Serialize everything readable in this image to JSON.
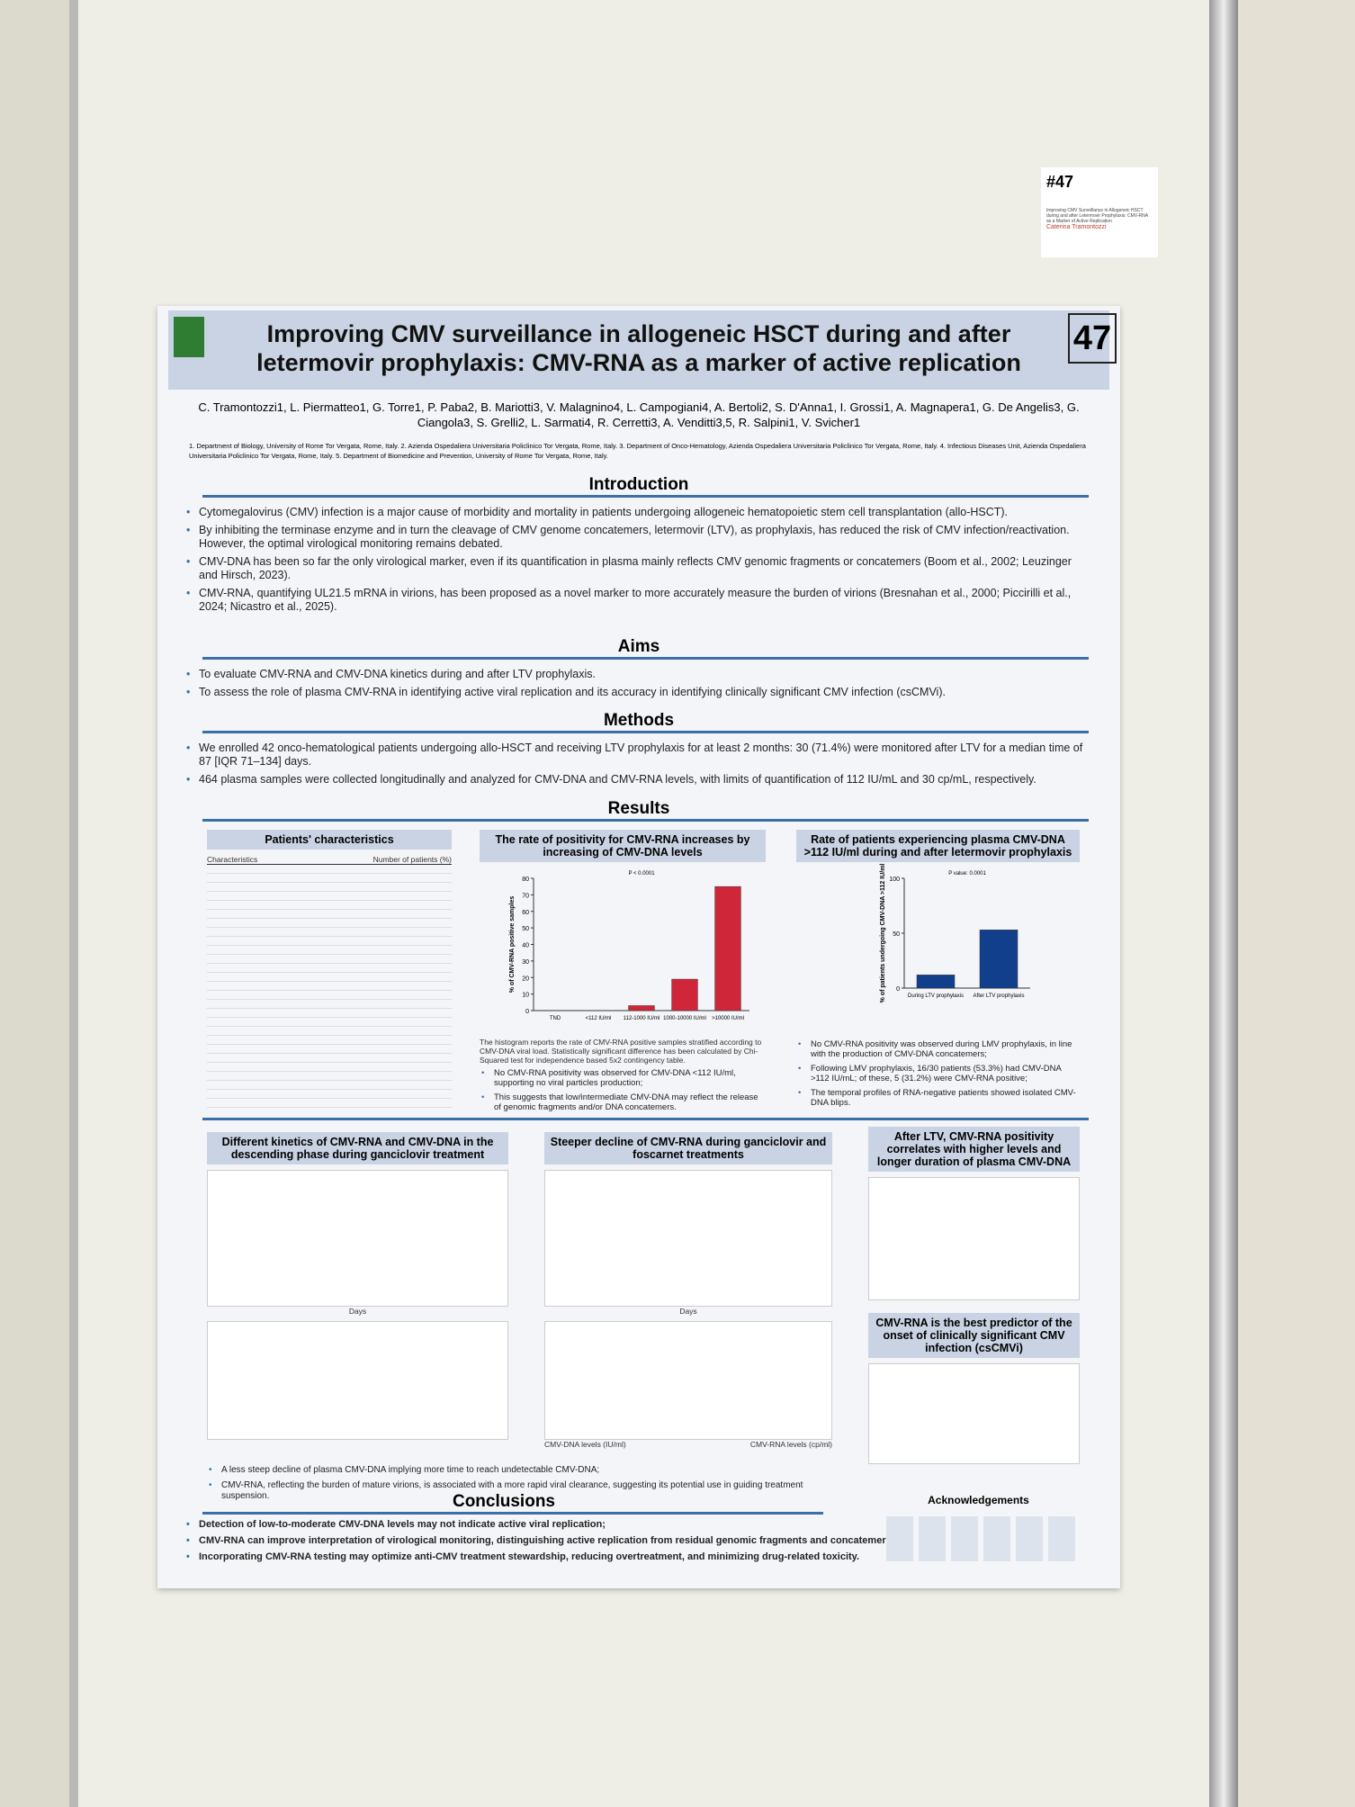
{
  "card": {
    "number": "#47",
    "title": "Improving CMV Surveillance in Allogeneic HSCT during and after Letermovir Prophylaxis: CMV-RNA as a Marker of Active Replication",
    "author": "Caterina Tramontozzi"
  },
  "header": {
    "title_line1": "Improving CMV surveillance in allogeneic HSCT during and after",
    "title_line2": "letermovir prophylaxis: CMV-RNA as a marker of active replication",
    "number": "47",
    "authors": "C. Tramontozzi1, L. Piermatteo1, G. Torre1, P. Paba2, B. Mariotti3, V. Malagnino4, L. Campogiani4, A. Bertoli2, S. D'Anna1, I. Grossi1, A. Magnapera1, G. De Angelis3, G. Ciangola3, S. Grelli2, L. Sarmati4, R. Cerretti3, A. Venditti3,5, R. Salpini1, V. Svicher1",
    "affiliations": "1. Department of Biology, University of Rome Tor Vergata, Rome, Italy. 2. Azienda Ospedaliera Universitaria Policlinico Tor Vergata, Rome, Italy. 3. Department of Onco-Hematology, Azienda Ospedaliera Universitaria Policlinico Tor Vergata, Rome, Italy. 4. Infectious Diseases Unit, Azienda Ospedaliera Universitaria Policlinico Tor Vergata, Rome, Italy. 5. Department of Biomedicine and Prevention, University of Rome Tor Vergata, Rome, Italy."
  },
  "introduction": {
    "heading": "Introduction",
    "bullets": [
      "Cytomegalovirus (CMV) infection is a major cause of morbidity and mortality in patients undergoing allogeneic hematopoietic stem cell transplantation (allo-HSCT).",
      "By inhibiting the terminase enzyme and in turn the cleavage of CMV genome concatemers, letermovir (LTV), as prophylaxis, has reduced the risk of CMV infection/reactivation. However, the optimal virological monitoring remains debated.",
      "CMV-DNA has been so far the only virological marker, even if its quantification in plasma mainly reflects CMV genomic fragments or concatemers (Boom et al., 2002; Leuzinger and Hirsch, 2023).",
      "CMV-RNA, quantifying UL21.5 mRNA in virions, has been proposed as a novel marker to more accurately measure the burden of virions (Bresnahan et al., 2000; Piccirilli et al., 2024; Nicastro et al., 2025)."
    ]
  },
  "aims": {
    "heading": "Aims",
    "bullets": [
      "To evaluate CMV-RNA and CMV-DNA kinetics during and after LTV prophylaxis.",
      "To assess the role of plasma CMV-RNA in identifying active viral replication and its accuracy in identifying clinically significant CMV infection (csCMVi)."
    ]
  },
  "methods": {
    "heading": "Methods",
    "bullets": [
      "We enrolled 42 onco-hematological patients undergoing allo-HSCT and receiving LTV prophylaxis for at least 2 months: 30 (71.4%) were monitored after LTV for a median time of 87 [IQR 71–134] days.",
      "464 plasma samples were collected longitudinally and analyzed for CMV-DNA and CMV-RNA levels, with limits of quantification of 112 IU/mL and 30 cp/mL, respectively."
    ]
  },
  "results": {
    "heading": "Results",
    "table_title": "Patients' characteristics",
    "table_head": [
      "Characteristics",
      "Number of patients (%)"
    ],
    "positivity": {
      "title": "The rate of positivity for CMV-RNA increases by increasing of CMV-DNA levels",
      "ylabel": "% of CMV-RNA positive samples",
      "pvalue": "P < 0.0001",
      "categories": [
        "TND",
        "<112 IU/ml",
        "112-1000 IU/ml",
        "1000-10000 IU/ml",
        ">10000 IU/ml"
      ],
      "values": [
        0,
        0,
        3,
        19,
        75
      ],
      "ylim": [
        0,
        80
      ],
      "yticks": [
        0,
        10,
        20,
        30,
        40,
        50,
        60,
        70,
        80
      ],
      "color": "#d0263a",
      "caption": "The histogram reports the rate of CMV-RNA positive samples stratified according to CMV-DNA viral load. Statistically significant difference has been calculated by Chi-Squared test for independence based 5x2 contingency table.",
      "bullets": [
        "No CMV-RNA positivity was observed for CMV-DNA <112 IU/ml, supporting no viral particles production;",
        "This suggests that low/intermediate CMV-DNA may reflect the release of genomic fragments and/or DNA concatemers."
      ]
    },
    "ltv": {
      "title": "Rate of patients experiencing plasma CMV-DNA >112 IU/ml during and after letermovir prophylaxis",
      "ylabel": "% of patients undergoing CMV-DNA >112 IU/ml",
      "pvalue": "P value: 0.0001",
      "categories": [
        "During LTV prophylaxis",
        "After LTV prophylaxis"
      ],
      "values": [
        12,
        53
      ],
      "ylim": [
        0,
        100
      ],
      "yticks": [
        0,
        50,
        100
      ],
      "color": "#123f8c",
      "bullets": [
        "No CMV-RNA positivity was observed during LMV prophylaxis, in line with the production of CMV-DNA concatemers;",
        "Following LMV prophylaxis, 16/30 patients (53.3%) had CMV-DNA >112 IU/mL; of these, 5 (31.2%) were CMV-RNA positive;",
        "The temporal profiles of RNA-negative patients showed isolated CMV-DNA blips."
      ]
    },
    "kinetics_title": "Different kinetics of CMV-RNA and CMV-DNA in the descending phase during ganciclovir treatment",
    "foscarnet_title": "Steeper decline of CMV-RNA during ganciclovir and foscarnet treatments",
    "days": "Days",
    "dna_axis": "CMV-DNA levels (IU/ml)",
    "rna_axis": "CMV-RNA levels (cp/ml)",
    "kinetics_bullets": [
      "A less steep decline of plasma CMV-DNA implying more time to reach undetectable CMV-DNA;",
      "CMV-RNA, reflecting the burden of mature virions, is associated with a more rapid viral clearance, suggesting its potential use in guiding treatment suspension."
    ],
    "after_title": "After LTV, CMV-RNA positivity correlates with higher levels and longer duration of plasma CMV-DNA",
    "predictor_title": "CMV-RNA is the best predictor of the onset of clinically significant CMV infection (csCMVi)"
  },
  "conclusions": {
    "heading": "Conclusions",
    "bullets": [
      "Detection of low-to-moderate CMV-DNA levels may not indicate active viral replication;",
      "CMV-RNA can improve interpretation of virological monitoring, distinguishing active replication from residual genomic fragments and concatemers;",
      "Incorporating CMV-RNA testing may optimize anti-CMV treatment stewardship, reducing overtreatment, and minimizing drug-related toxicity."
    ]
  },
  "acknowledgements": {
    "heading": "Acknowledgements"
  }
}
